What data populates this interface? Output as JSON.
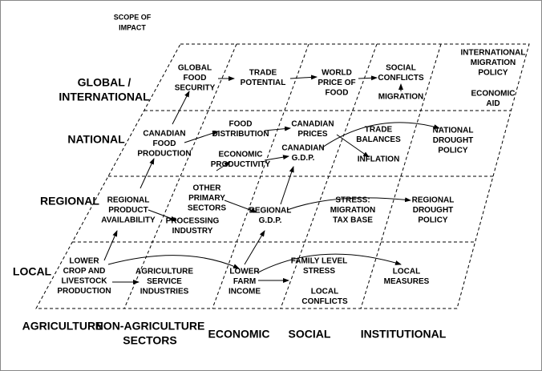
{
  "header": {
    "lines": [
      "SCOPE OF",
      "IMPACT"
    ]
  },
  "rows": [
    {
      "lines": [
        "GLOBAL /",
        "INTERNATIONAL"
      ]
    },
    {
      "lines": [
        "NATIONAL"
      ]
    },
    {
      "lines": [
        "REGIONAL"
      ]
    },
    {
      "lines": [
        "LOCAL"
      ]
    }
  ],
  "columns": [
    {
      "lines": [
        "AGRICULTURE"
      ]
    },
    {
      "lines": [
        "NON-AGRICULTURE",
        "SECTORS"
      ]
    },
    {
      "lines": [
        "ECONOMIC"
      ]
    },
    {
      "lines": [
        "SOCIAL"
      ]
    },
    {
      "lines": [
        "INSTITUTIONAL"
      ]
    }
  ],
  "nodes": [
    {
      "lines": [
        "GLOBAL",
        "FOOD",
        "SECURITY"
      ]
    },
    {
      "lines": [
        "TRADE",
        "POTENTIAL"
      ]
    },
    {
      "lines": [
        "WORLD",
        "PRICE OF",
        "FOOD"
      ]
    },
    {
      "lines": [
        "SOCIAL",
        "CONFLICTS"
      ]
    },
    {
      "lines": [
        "MIGRATION"
      ]
    },
    {
      "lines": [
        "INTERNATIONAL",
        "MIGRATION",
        "POLICY"
      ]
    },
    {
      "lines": [
        "ECONOMIC",
        "AID"
      ]
    },
    {
      "lines": [
        "CANADIAN",
        "FOOD",
        "PRODUCTION"
      ]
    },
    {
      "lines": [
        "FOOD",
        "DISTRIBUTION"
      ]
    },
    {
      "lines": [
        "CANADIAN",
        "PRICES"
      ]
    },
    {
      "lines": [
        "TRADE",
        "BALANCES"
      ]
    },
    {
      "lines": [
        "NATIONAL",
        "DROUGHT",
        "POLICY"
      ]
    },
    {
      "lines": [
        "ECONOMIC",
        "PRODUCTIVITY"
      ]
    },
    {
      "lines": [
        "CANADIAN",
        "G.D.P."
      ]
    },
    {
      "lines": [
        "INFLATION"
      ]
    },
    {
      "lines": [
        "REGIONAL",
        "PRODUCT",
        "AVAILABILITY"
      ]
    },
    {
      "lines": [
        "OTHER",
        "PRIMARY",
        "SECTORS"
      ]
    },
    {
      "lines": [
        "PROCESSING",
        "INDUSTRY"
      ]
    },
    {
      "lines": [
        "REGIONAL",
        "G.D.P."
      ]
    },
    {
      "lines": [
        "STRESS:",
        "MIGRATION",
        "TAX BASE"
      ]
    },
    {
      "lines": [
        "REGIONAL",
        "DROUGHT",
        "POLICY"
      ]
    },
    {
      "lines": [
        "LOWER",
        "CROP AND",
        "LIVESTOCK",
        "PRODUCTION"
      ]
    },
    {
      "lines": [
        "AGRICULTURE",
        "SERVICE",
        "INDUSTRIES"
      ]
    },
    {
      "lines": [
        "LOWER",
        "FARM",
        "INCOME"
      ]
    },
    {
      "lines": [
        "FAMILY LEVEL",
        "STRESS"
      ]
    },
    {
      "lines": [
        "LOCAL",
        "CONFLICTS"
      ]
    },
    {
      "lines": [
        "LOCAL",
        "MEASURES"
      ]
    }
  ]
}
